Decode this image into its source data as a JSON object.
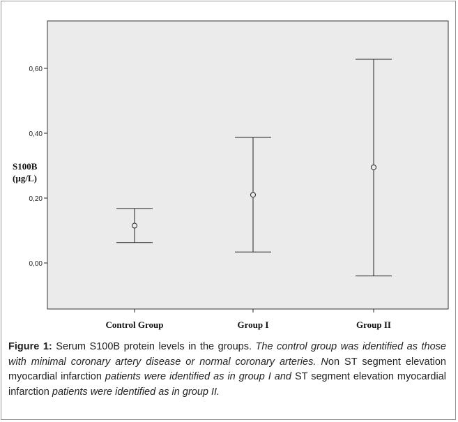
{
  "chart_data": {
    "type": "errorbar",
    "categories": [
      "Control Group",
      "Group I",
      "Group II"
    ],
    "series": [
      {
        "mean": [
          0.115,
          0.21,
          0.295
        ],
        "lower": [
          0.063,
          0.034,
          -0.04
        ],
        "upper": [
          0.168,
          0.387,
          0.628
        ]
      }
    ],
    "ylabel_line1": "S100B",
    "ylabel_line2": "(µg/L)",
    "yticks": [
      0.0,
      0.2,
      0.4,
      0.6
    ],
    "ytick_labels": [
      "0,00",
      "0,20",
      "0,40",
      "0,60"
    ],
    "ylim": [
      -0.14,
      0.74
    ],
    "grid": false,
    "legend": "none",
    "colors": {
      "plot_bg": "#ebebeb",
      "line": "#222222",
      "frame": "#3fb8b0"
    }
  },
  "caption": {
    "label": "Figure 1:",
    "text1": " Serum S100B protein levels in the groups. ",
    "text2": "The control group was identified as those with minimal coronary artery disease or normal coronary arteries. N",
    "text3": "on ST segment elevation myocardial infarction ",
    "text4": "patients were identified as in group I and",
    "text5": " ST segment elevation myocardial infarction ",
    "text6": "patients were identified as in group II."
  }
}
